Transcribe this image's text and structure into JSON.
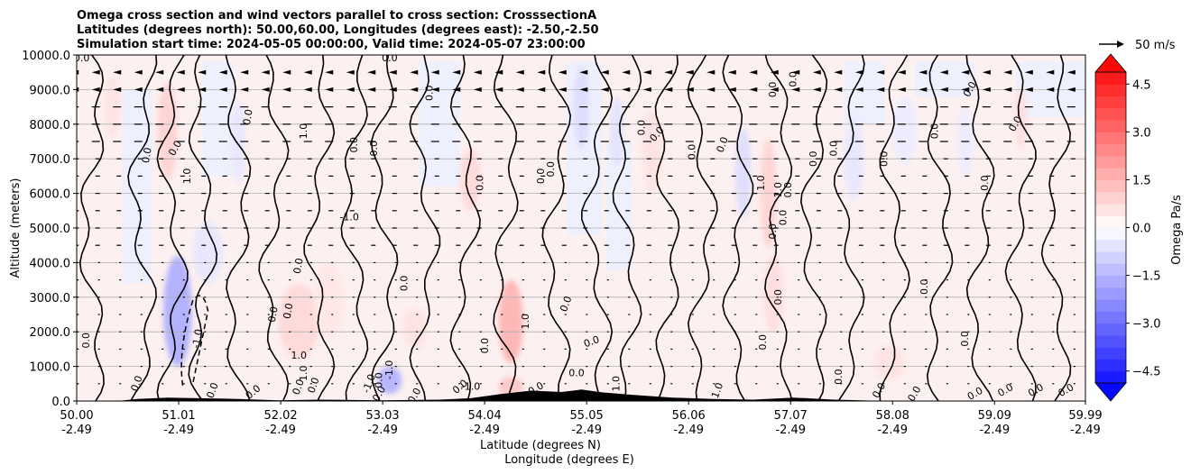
{
  "chart_data": {
    "type": "heatmap",
    "title_lines": [
      "Omega cross section and wind vectors parallel to cross section: CrosssectionA",
      "Latitudes (degrees north): 50.00,60.00, Longitudes (degrees east): -2.50,-2.50",
      "Simulation start time: 2024-05-05 00:00:00, Valid time: 2024-05-07 23:00:00"
    ],
    "ylabel": "Altitude (meters)",
    "xlabel_lines": [
      "Latitude (degrees N)",
      "Longitude (degrees E)"
    ],
    "xlim": [
      50.0,
      59.99
    ],
    "ylim": [
      0,
      10000
    ],
    "grid": "horizontal",
    "x_ticks": [
      {
        "lat": 50.0,
        "lat_label": "50.00",
        "lon_label": "-2.49"
      },
      {
        "lat": 51.01,
        "lat_label": "51.01",
        "lon_label": "-2.49"
      },
      {
        "lat": 52.02,
        "lat_label": "52.02",
        "lon_label": "-2.49"
      },
      {
        "lat": 53.03,
        "lat_label": "53.03",
        "lon_label": "-2.49"
      },
      {
        "lat": 54.04,
        "lat_label": "54.04",
        "lon_label": "-2.49"
      },
      {
        "lat": 55.05,
        "lat_label": "55.05",
        "lon_label": "-2.49"
      },
      {
        "lat": 56.06,
        "lat_label": "56.06",
        "lon_label": "-2.49"
      },
      {
        "lat": 57.07,
        "lat_label": "57.07",
        "lon_label": "-2.49"
      },
      {
        "lat": 58.08,
        "lat_label": "58.08",
        "lon_label": "-2.49"
      },
      {
        "lat": 59.09,
        "lat_label": "59.09",
        "lon_label": "-2.49"
      },
      {
        "lat": 59.99,
        "lat_label": "59.99",
        "lon_label": "-2.49"
      }
    ],
    "y_ticks": [
      {
        "value": 0,
        "label": "0.0"
      },
      {
        "value": 1000,
        "label": "1000.0"
      },
      {
        "value": 2000,
        "label": "2000.0"
      },
      {
        "value": 3000,
        "label": "3000.0"
      },
      {
        "value": 4000,
        "label": "4000.0"
      },
      {
        "value": 5000,
        "label": "5000.0"
      },
      {
        "value": 6000,
        "label": "6000.0"
      },
      {
        "value": 7000,
        "label": "7000.0"
      },
      {
        "value": 8000,
        "label": "8000.0"
      },
      {
        "value": 9000,
        "label": "9000.0"
      },
      {
        "value": 10000,
        "label": "10000.0"
      }
    ],
    "colorbar": {
      "label": "Omega Pa/s",
      "vmin": -5.25,
      "vmax": 5.25,
      "levels": [
        -5.25,
        -4.875,
        -4.5,
        -4.125,
        -3.75,
        -3.375,
        -3.0,
        -2.625,
        -2.25,
        -1.875,
        -1.5,
        -1.125,
        -0.75,
        -0.375,
        0.0,
        0.375,
        0.75,
        1.125,
        1.5,
        1.875,
        2.25,
        2.625,
        3.0,
        3.375,
        3.75,
        4.125,
        4.5,
        4.875,
        5.25
      ],
      "ticks": [
        {
          "value": 4.5,
          "label": "4.5"
        },
        {
          "value": 3.0,
          "label": "3.0"
        },
        {
          "value": 1.5,
          "label": "1.5"
        },
        {
          "value": 0.0,
          "label": "0.0"
        },
        {
          "value": -1.5,
          "label": "−1.5"
        },
        {
          "value": -3.0,
          "label": "−3.0"
        },
        {
          "value": -4.5,
          "label": "−4.5"
        }
      ],
      "extend": "both",
      "colormap": "bwr"
    },
    "quiver_key": {
      "label": "50 m/s",
      "speed": 50
    },
    "omega_features": [
      {
        "lat": 50.35,
        "alt": 8500,
        "omega": 0.6,
        "wlat": 0.08,
        "walt": 900
      },
      {
        "lat": 50.9,
        "alt": 7800,
        "omega": 0.9,
        "wlat": 0.1,
        "walt": 1400
      },
      {
        "lat": 51.0,
        "alt": 2600,
        "omega": -1.7,
        "wlat": 0.14,
        "walt": 1600
      },
      {
        "lat": 51.3,
        "alt": 4300,
        "omega": -0.5,
        "wlat": 0.15,
        "walt": 900
      },
      {
        "lat": 51.6,
        "alt": 7500,
        "omega": -0.5,
        "wlat": 0.07,
        "walt": 1200
      },
      {
        "lat": 52.2,
        "alt": 2300,
        "omega": 0.8,
        "wlat": 0.2,
        "walt": 1100
      },
      {
        "lat": 52.5,
        "alt": 2900,
        "omega": 0.5,
        "wlat": 0.15,
        "walt": 1100
      },
      {
        "lat": 53.1,
        "alt": 600,
        "omega": -1.6,
        "wlat": 0.12,
        "walt": 400
      },
      {
        "lat": 53.35,
        "alt": 2100,
        "omega": 0.6,
        "wlat": 0.12,
        "walt": 600
      },
      {
        "lat": 53.9,
        "alt": 6400,
        "omega": 0.8,
        "wlat": 0.1,
        "walt": 900
      },
      {
        "lat": 54.3,
        "alt": 2300,
        "omega": 1.6,
        "wlat": 0.12,
        "walt": 1200
      },
      {
        "lat": 54.3,
        "alt": 400,
        "omega": 1.2,
        "wlat": 0.12,
        "walt": 300
      },
      {
        "lat": 55.0,
        "alt": 8500,
        "omega": -0.7,
        "wlat": 0.08,
        "walt": 1200
      },
      {
        "lat": 55.35,
        "alt": 7800,
        "omega": -0.6,
        "wlat": 0.07,
        "walt": 1000
      },
      {
        "lat": 55.7,
        "alt": 7200,
        "omega": 0.6,
        "wlat": 0.1,
        "walt": 1200
      },
      {
        "lat": 56.6,
        "alt": 6600,
        "omega": -0.7,
        "wlat": 0.08,
        "walt": 1300
      },
      {
        "lat": 56.85,
        "alt": 6000,
        "omega": 0.9,
        "wlat": 0.08,
        "walt": 1600
      },
      {
        "lat": 56.9,
        "alt": 3100,
        "omega": 0.7,
        "wlat": 0.1,
        "walt": 1100
      },
      {
        "lat": 57.7,
        "alt": 7000,
        "omega": -0.5,
        "wlat": 0.1,
        "walt": 1200
      },
      {
        "lat": 58.05,
        "alt": 1100,
        "omega": 0.6,
        "wlat": 0.15,
        "walt": 500
      },
      {
        "lat": 58.2,
        "alt": 7800,
        "omega": -0.4,
        "wlat": 0.12,
        "walt": 1000
      },
      {
        "lat": 58.8,
        "alt": 7500,
        "omega": -0.4,
        "wlat": 0.08,
        "walt": 1000
      },
      {
        "lat": 59.35,
        "alt": 8200,
        "omega": 0.7,
        "wlat": 0.06,
        "walt": 900
      }
    ],
    "contour_labels": [
      {
        "lat": 50.05,
        "alt": 9900,
        "text": "0.0",
        "rot": 0
      },
      {
        "lat": 50.1,
        "alt": 1750,
        "text": "0.0",
        "rot": -90
      },
      {
        "lat": 50.6,
        "alt": 500,
        "text": "0.0",
        "rot": -70
      },
      {
        "lat": 50.7,
        "alt": 7100,
        "text": "0.0",
        "rot": -80
      },
      {
        "lat": 50.98,
        "alt": 7300,
        "text": "0.0",
        "rot": -60
      },
      {
        "lat": 51.1,
        "alt": 6500,
        "text": "1.0",
        "rot": -90
      },
      {
        "lat": 51.2,
        "alt": 1800,
        "text": "-1.0",
        "rot": -80
      },
      {
        "lat": 51.35,
        "alt": 300,
        "text": "0.0",
        "rot": -70
      },
      {
        "lat": 51.7,
        "alt": 8200,
        "text": "0.0",
        "rot": -80
      },
      {
        "lat": 51.75,
        "alt": 250,
        "text": "0.0",
        "rot": -40
      },
      {
        "lat": 51.95,
        "alt": 2500,
        "text": "0.0",
        "rot": -80
      },
      {
        "lat": 52.1,
        "alt": 2600,
        "text": "0.0",
        "rot": -80
      },
      {
        "lat": 52.2,
        "alt": 3900,
        "text": "0.0",
        "rot": -80
      },
      {
        "lat": 52.25,
        "alt": 7800,
        "text": "1.0",
        "rot": -90
      },
      {
        "lat": 52.2,
        "alt": 1300,
        "text": "1.0",
        "rot": 0
      },
      {
        "lat": 52.25,
        "alt": 800,
        "text": "1.0",
        "rot": -90
      },
      {
        "lat": 52.2,
        "alt": 400,
        "text": "0.0",
        "rot": -70
      },
      {
        "lat": 52.35,
        "alt": 450,
        "text": "0.0",
        "rot": -70
      },
      {
        "lat": 52.7,
        "alt": 5300,
        "text": "-1.0",
        "rot": 0
      },
      {
        "lat": 52.75,
        "alt": 7400,
        "text": "0.0",
        "rot": -90
      },
      {
        "lat": 52.95,
        "alt": 7300,
        "text": "0.0",
        "rot": -90
      },
      {
        "lat": 52.9,
        "alt": 500,
        "text": "-1.0",
        "rot": -70
      },
      {
        "lat": 53.0,
        "alt": 600,
        "text": "0.0",
        "rot": -90
      },
      {
        "lat": 53.0,
        "alt": 200,
        "text": "0.0",
        "rot": -60
      },
      {
        "lat": 53.1,
        "alt": 900,
        "text": "-1.0",
        "rot": -90
      },
      {
        "lat": 53.1,
        "alt": 9900,
        "text": "0.0",
        "rot": 0
      },
      {
        "lat": 53.25,
        "alt": 3400,
        "text": "0.0",
        "rot": -90
      },
      {
        "lat": 53.5,
        "alt": 8900,
        "text": "0.0",
        "rot": -90
      },
      {
        "lat": 53.35,
        "alt": 150,
        "text": "0.0",
        "rot": -60
      },
      {
        "lat": 53.8,
        "alt": 400,
        "text": "0.0",
        "rot": -40
      },
      {
        "lat": 53.9,
        "alt": 400,
        "text": "-1.0",
        "rot": 0
      },
      {
        "lat": 54.0,
        "alt": 6300,
        "text": "0.0",
        "rot": -90
      },
      {
        "lat": 54.05,
        "alt": 1600,
        "text": "0.0",
        "rot": -90
      },
      {
        "lat": 54.45,
        "alt": 2300,
        "text": "1.0",
        "rot": -90
      },
      {
        "lat": 54.55,
        "alt": 350,
        "text": "0.0",
        "rot": -30
      },
      {
        "lat": 54.6,
        "alt": 6500,
        "text": "0.0",
        "rot": -90
      },
      {
        "lat": 54.7,
        "alt": 6700,
        "text": "0.0",
        "rot": -90
      },
      {
        "lat": 54.85,
        "alt": 2800,
        "text": "0.0",
        "rot": -70
      },
      {
        "lat": 54.95,
        "alt": 800,
        "text": "0.0",
        "rot": 0
      },
      {
        "lat": 55.1,
        "alt": 1700,
        "text": "0.0",
        "rot": -20
      },
      {
        "lat": 55.35,
        "alt": 500,
        "text": "1.0",
        "rot": -90
      },
      {
        "lat": 55.6,
        "alt": 7900,
        "text": "0.0",
        "rot": -90
      },
      {
        "lat": 55.75,
        "alt": 7700,
        "text": "0.0",
        "rot": -50
      },
      {
        "lat": 56.1,
        "alt": 7200,
        "text": "0.0",
        "rot": -90
      },
      {
        "lat": 56.35,
        "alt": 300,
        "text": "1.0",
        "rot": -70
      },
      {
        "lat": 56.4,
        "alt": 7400,
        "text": "0.0",
        "rot": -70
      },
      {
        "lat": 56.78,
        "alt": 6300,
        "text": "1.0",
        "rot": -90
      },
      {
        "lat": 56.9,
        "alt": 4900,
        "text": "0.0",
        "rot": -90
      },
      {
        "lat": 56.9,
        "alt": 9000,
        "text": "0.0",
        "rot": -90
      },
      {
        "lat": 56.95,
        "alt": 6100,
        "text": "1.0",
        "rot": -90
      },
      {
        "lat": 57.05,
        "alt": 6100,
        "text": "0.0",
        "rot": -90
      },
      {
        "lat": 57.0,
        "alt": 5300,
        "text": "0.0",
        "rot": -90
      },
      {
        "lat": 56.8,
        "alt": 1700,
        "text": "0.0",
        "rot": -90
      },
      {
        "lat": 56.95,
        "alt": 3000,
        "text": "0.0",
        "rot": -90
      },
      {
        "lat": 57.1,
        "alt": 9300,
        "text": "0.0",
        "rot": -90
      },
      {
        "lat": 57.3,
        "alt": 7000,
        "text": "0.0",
        "rot": -90
      },
      {
        "lat": 57.5,
        "alt": 7300,
        "text": "0.0",
        "rot": -90
      },
      {
        "lat": 57.55,
        "alt": 700,
        "text": "0.0",
        "rot": -90
      },
      {
        "lat": 58.0,
        "alt": 7000,
        "text": "0.0",
        "rot": -90
      },
      {
        "lat": 57.95,
        "alt": 300,
        "text": "0.0",
        "rot": -60
      },
      {
        "lat": 58.3,
        "alt": 200,
        "text": "0.0",
        "rot": -60
      },
      {
        "lat": 58.4,
        "alt": 3300,
        "text": "0.0",
        "rot": -90
      },
      {
        "lat": 58.5,
        "alt": 7800,
        "text": "0.0",
        "rot": -90
      },
      {
        "lat": 58.8,
        "alt": 1800,
        "text": "0.0",
        "rot": -90
      },
      {
        "lat": 58.85,
        "alt": 9000,
        "text": "0.0",
        "rot": -60
      },
      {
        "lat": 59.0,
        "alt": 6300,
        "text": "0.0",
        "rot": -90
      },
      {
        "lat": 59.3,
        "alt": 8000,
        "text": "0.0",
        "rot": -60
      },
      {
        "lat": 58.9,
        "alt": 200,
        "text": "0.0",
        "rot": -30
      },
      {
        "lat": 59.2,
        "alt": 300,
        "text": "0.0",
        "rot": -30
      },
      {
        "lat": 59.5,
        "alt": 300,
        "text": "0.0",
        "rot": -30
      },
      {
        "lat": 59.8,
        "alt": 300,
        "text": "0.0",
        "rot": -30
      }
    ]
  }
}
